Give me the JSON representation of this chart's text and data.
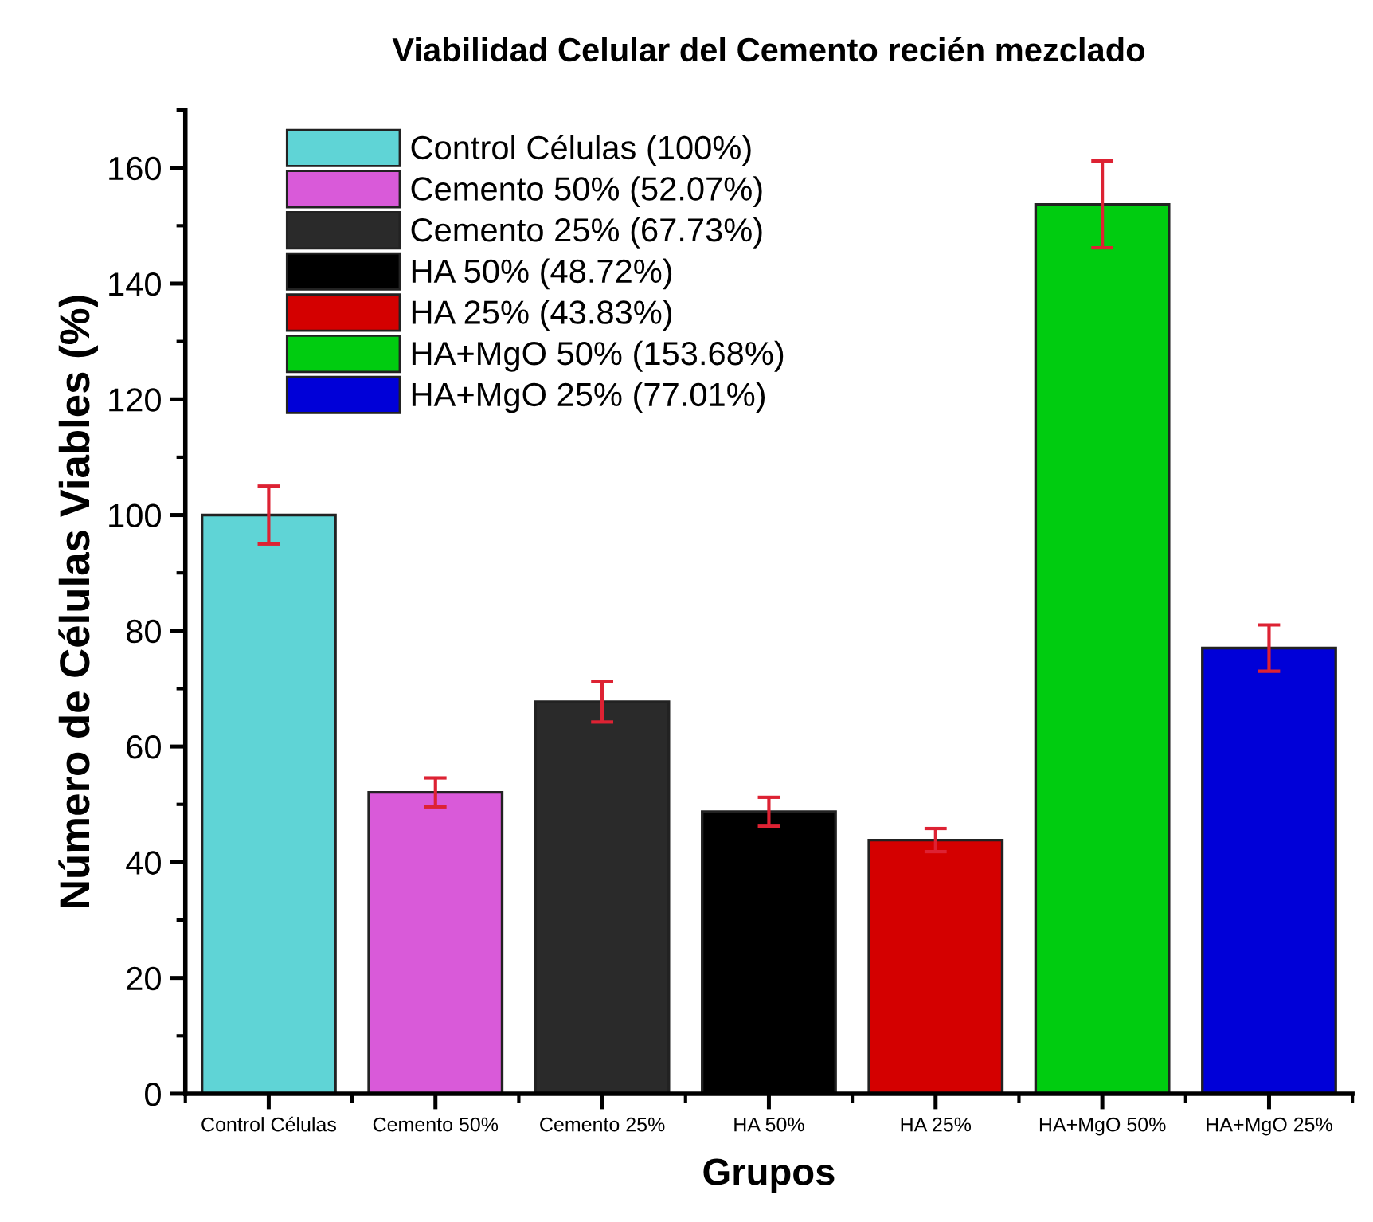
{
  "chart_data": {
    "type": "bar",
    "title": "Viabilidad Celular del Cemento recién mezclado",
    "xlabel": "Grupos",
    "ylabel": "Número de Células Viables (%)",
    "categories": [
      "Control Células",
      "Cemento 50%",
      "Cemento 25%",
      "HA 50%",
      "HA 25%",
      "HA+MgO 50%",
      "HA+MgO 25%"
    ],
    "stacked": true,
    "series": [
      {
        "name": "Control Células (100%)",
        "color": "#5fd4d6",
        "values": [
          100,
          null,
          null,
          null,
          null,
          null,
          null
        ],
        "errors": [
          5,
          null,
          null,
          null,
          null,
          null,
          null
        ]
      },
      {
        "name": "Cemento 50% (52.07%)",
        "color": "#d95ad9",
        "values": [
          null,
          52.07,
          null,
          null,
          null,
          null,
          null
        ],
        "errors": [
          null,
          2.5,
          null,
          null,
          null,
          null,
          null
        ]
      },
      {
        "name": "Cemento 25% (67.73%)",
        "color": "#2a2a2a",
        "values": [
          null,
          null,
          67.73,
          null,
          null,
          null,
          null
        ],
        "errors": [
          null,
          null,
          3.5,
          null,
          null,
          null,
          null
        ]
      },
      {
        "name": "HA 50% (48.72%)",
        "color": "#000000",
        "values": [
          null,
          null,
          null,
          48.72,
          null,
          null,
          null
        ],
        "errors": [
          null,
          null,
          null,
          2.5,
          null,
          null,
          null
        ]
      },
      {
        "name": "HA 25% (43.83%)",
        "color": "#d40000",
        "values": [
          null,
          null,
          null,
          null,
          43.83,
          null,
          null
        ],
        "errors": [
          null,
          null,
          null,
          null,
          2,
          null,
          null
        ]
      },
      {
        "name": "HA+MgO 50% (153.68%)",
        "color": "#00cc10",
        "values": [
          null,
          null,
          null,
          null,
          null,
          153.68,
          null
        ],
        "errors": [
          null,
          null,
          null,
          null,
          null,
          7.5,
          null
        ]
      },
      {
        "name": "HA+MgO 25% (77.01%)",
        "color": "#0000d8",
        "values": [
          null,
          null,
          null,
          null,
          null,
          null,
          77.01
        ],
        "errors": [
          null,
          null,
          null,
          null,
          null,
          null,
          4
        ]
      }
    ],
    "ylim": [
      0,
      170
    ],
    "yticks": [
      0,
      20,
      40,
      60,
      80,
      100,
      120,
      140,
      160
    ],
    "grid": false,
    "legend": "top left"
  }
}
